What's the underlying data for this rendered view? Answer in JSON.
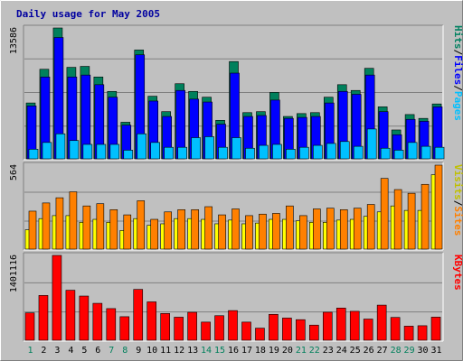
{
  "chart_data": [
    {
      "type": "bar",
      "title": "Daily usage for May 2005",
      "ymax_label": "13586",
      "ylim": [
        0,
        13586
      ],
      "legend": [
        "Hits",
        "Files",
        "Pages"
      ],
      "legend_sep": "/",
      "categories": [
        "1",
        "2",
        "3",
        "4",
        "5",
        "6",
        "7",
        "8",
        "9",
        "10",
        "11",
        "12",
        "13",
        "14",
        "15",
        "16",
        "17",
        "18",
        "19",
        "20",
        "21",
        "22",
        "23",
        "24",
        "25",
        "26",
        "27",
        "28",
        "29",
        "30",
        "31"
      ],
      "weekend_days": [
        1,
        7,
        8,
        14,
        15,
        21,
        22,
        28,
        29
      ],
      "grid": true,
      "series": [
        {
          "name": "Hits",
          "color": "#00805c",
          "values": [
            5800,
            9300,
            13586,
            9500,
            9600,
            8500,
            7000,
            3800,
            11300,
            6500,
            4900,
            7800,
            7000,
            6400,
            4000,
            10100,
            4800,
            4900,
            6900,
            4400,
            4700,
            4800,
            6400,
            7700,
            7100,
            9400,
            5400,
            3000,
            4600,
            4200,
            5700
          ]
        },
        {
          "name": "Files",
          "color": "#0000ff",
          "values": [
            5500,
            8500,
            12600,
            8500,
            8700,
            7700,
            6400,
            3500,
            10800,
            6000,
            4400,
            7100,
            6200,
            5900,
            3600,
            8900,
            4400,
            4500,
            6100,
            4200,
            4300,
            4400,
            5800,
            7000,
            6700,
            8700,
            4900,
            2500,
            4100,
            3900,
            5400
          ]
        },
        {
          "name": "Pages",
          "color": "#00c0ff",
          "values": [
            1000,
            1700,
            2600,
            1900,
            1500,
            1500,
            1500,
            900,
            2600,
            1700,
            1200,
            1200,
            2200,
            2300,
            1200,
            2200,
            1100,
            1400,
            1500,
            1000,
            1200,
            1400,
            1600,
            1800,
            1300,
            3100,
            1100,
            900,
            1700,
            1300,
            1200
          ]
        }
      ]
    },
    {
      "type": "bar",
      "ymax_label": "564",
      "ylim": [
        0,
        564
      ],
      "legend": [
        "Visits",
        "Sites"
      ],
      "legend_sep": "/",
      "series": [
        {
          "name": "Visits",
          "color": "#ffff00",
          "values": [
            130,
            205,
            225,
            225,
            180,
            200,
            180,
            125,
            205,
            160,
            170,
            205,
            205,
            200,
            170,
            195,
            170,
            175,
            200,
            200,
            190,
            180,
            180,
            195,
            200,
            220,
            250,
            290,
            260,
            260,
            500
          ]
        },
        {
          "name": "Sites",
          "color": "#ff8000",
          "values": [
            255,
            310,
            345,
            385,
            290,
            305,
            265,
            230,
            325,
            200,
            250,
            265,
            265,
            285,
            230,
            270,
            225,
            235,
            240,
            290,
            225,
            270,
            275,
            265,
            275,
            300,
            475,
            400,
            375,
            435,
            564
          ]
        }
      ]
    },
    {
      "type": "bar",
      "ymax_label": "1401116",
      "ylim": [
        0,
        1401116
      ],
      "legend": [
        "KBytes"
      ],
      "legend_sep": "",
      "series": [
        {
          "name": "KBytes",
          "color": "#ff0000",
          "values": [
            452000,
            740000,
            1401116,
            826000,
            730000,
            610000,
            523000,
            389000,
            840000,
            634000,
            442000,
            381000,
            462000,
            300000,
            406000,
            490000,
            300000,
            200000,
            428000,
            367000,
            340000,
            250000,
            463000,
            532000,
            478000,
            350000,
            580000,
            377000,
            233000,
            240000,
            382000
          ]
        }
      ]
    }
  ]
}
